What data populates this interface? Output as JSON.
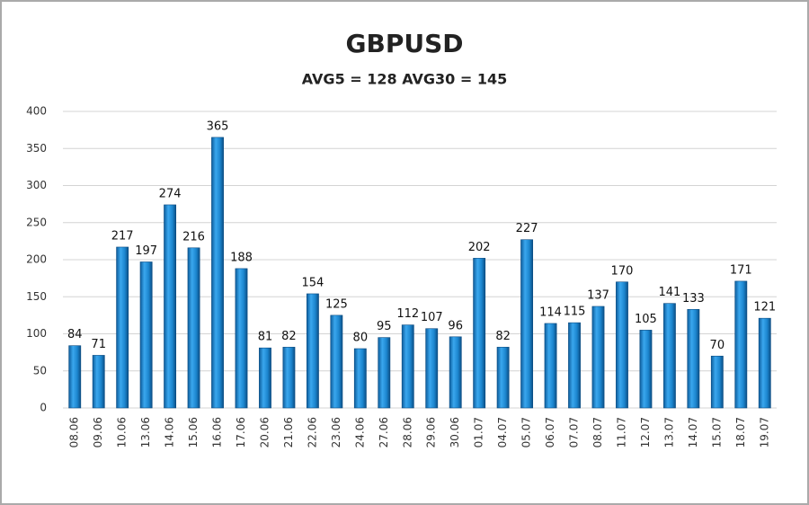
{
  "chart_data": {
    "type": "bar",
    "title": "GBPUSD",
    "subtitle": "AVG5 = 128 AVG30 = 145",
    "categories": [
      "08.06",
      "09.06",
      "10.06",
      "13.06",
      "14.06",
      "15.06",
      "16.06",
      "17.06",
      "20.06",
      "21.06",
      "22.06",
      "23.06",
      "24.06",
      "27.06",
      "28.06",
      "29.06",
      "30.06",
      "01.07",
      "04.07",
      "05.07",
      "06.07",
      "07.07",
      "08.07",
      "11.07",
      "12.07",
      "13.07",
      "14.07",
      "15.07",
      "18.07",
      "19.07"
    ],
    "values": [
      84,
      71,
      217,
      197,
      274,
      216,
      365,
      188,
      81,
      82,
      154,
      125,
      80,
      95,
      112,
      107,
      96,
      202,
      82,
      227,
      114,
      115,
      137,
      170,
      105,
      141,
      133,
      70,
      171,
      121
    ],
    "color": "#1f8fd8",
    "ylim": [
      0,
      400
    ],
    "yticks": [
      0,
      50,
      100,
      150,
      200,
      250,
      300,
      350,
      400
    ],
    "grid": true
  }
}
